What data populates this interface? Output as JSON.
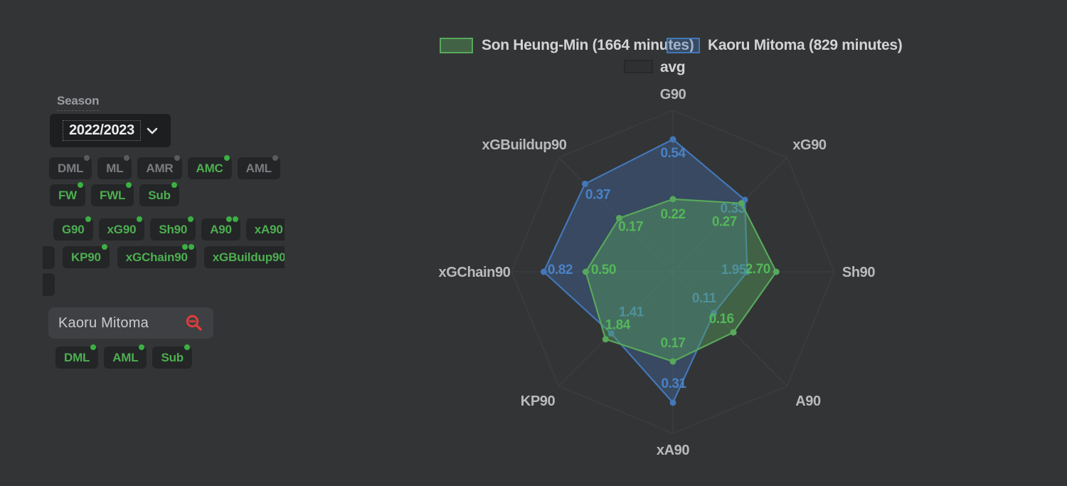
{
  "colors": {
    "background": "#333436",
    "accent_green": "#4caf50",
    "accent_blue": "#4377b8",
    "accent_red": "#e03c3c",
    "grid": "#3d3f42"
  },
  "panel": {
    "season": {
      "label": "Season",
      "value": "2022/2023"
    },
    "position_rows": [
      [
        {
          "label": "DML",
          "active": false,
          "dots": 1
        },
        {
          "label": "ML",
          "active": false,
          "dots": 1
        },
        {
          "label": "AMR",
          "active": false,
          "dots": 1
        },
        {
          "label": "AMC",
          "active": true,
          "dots": 1
        },
        {
          "label": "AML",
          "active": false,
          "dots": 1
        }
      ],
      [
        {
          "label": "FW",
          "active": true,
          "dots": 1
        },
        {
          "label": "FWL",
          "active": true,
          "dots": 1
        },
        {
          "label": "Sub",
          "active": true,
          "dots": 1
        }
      ]
    ],
    "stat_rows": [
      [
        {
          "label": "G90",
          "active": true,
          "dots": 1
        },
        {
          "label": "xG90",
          "active": true,
          "dots": 1
        },
        {
          "label": "Sh90",
          "active": true,
          "dots": 1
        },
        {
          "label": "A90",
          "active": true,
          "dots": 2
        },
        {
          "label": "xA90",
          "active": true,
          "dots": 0
        }
      ],
      [
        {
          "label": "KP90",
          "active": true,
          "dots": 1
        },
        {
          "label": "xGChain90",
          "active": true,
          "dots": 2
        },
        {
          "label": "xGBuildup90",
          "active": true,
          "dots": 0
        }
      ]
    ],
    "search": {
      "value": "Kaoru Mitoma"
    },
    "player_position_tags": [
      {
        "label": "DML",
        "active": true,
        "dots": 1
      },
      {
        "label": "AML",
        "active": true,
        "dots": 1
      },
      {
        "label": "Sub",
        "active": true,
        "dots": 1
      }
    ]
  },
  "legend": {
    "items": [
      {
        "label": "Son Heung-Min (1664 minutes)",
        "stroke": "#57a85c",
        "fill": "rgba(87,168,92,0.40)"
      },
      {
        "label": "Kaoru Mitoma (829 minutes)",
        "stroke": "#4377b8",
        "fill": "rgba(67,119,184,0.35)"
      },
      {
        "label": "avg",
        "stroke": "#27282a",
        "fill": "#2f3032"
      }
    ]
  },
  "chart_data": {
    "type": "radar",
    "axes": [
      "G90",
      "xG90",
      "Sh90",
      "A90",
      "xA90",
      "KP90",
      "xGChain90",
      "xGBuildup90"
    ],
    "series": [
      {
        "name": "Son Heung-Min",
        "minutes": 1664,
        "values": [
          0.22,
          0.27,
          2.7,
          0.16,
          0.17,
          1.84,
          0.5,
          0.17
        ],
        "labels": [
          "0.22",
          "0.27",
          "2.70",
          "0.16",
          "0.17",
          "1.84",
          "0.50",
          "0.17"
        ],
        "stroke": "#57a85c",
        "fill": "rgba(87,168,92,0.40)",
        "label_color": "#54b75a"
      },
      {
        "name": "Kaoru Mitoma",
        "minutes": 829,
        "values": [
          0.54,
          0.33,
          1.95,
          0.11,
          0.31,
          1.41,
          0.82,
          0.37
        ],
        "labels": [
          "0.54",
          "0.33",
          "1.95",
          "0.11",
          "0.31",
          "1.41",
          "0.82",
          "0.37"
        ],
        "stroke": "#4377b8",
        "fill": "rgba(67,119,184,0.33)",
        "label_color": "#4a82c6"
      },
      {
        "name": "avg",
        "values": null,
        "labels": null
      }
    ],
    "legend_position": "top-center",
    "grid": true,
    "layout_hints": {
      "center": [
        946,
        382
      ],
      "radius": 227,
      "draw_order": [
        1,
        0
      ],
      "r_frac": [
        [
          0.45,
          0.6,
          0.64,
          0.53,
          0.555,
          0.59,
          0.54,
          0.47
        ],
        [
          0.82,
          0.63,
          0.46,
          0.36,
          0.81,
          0.54,
          0.8,
          0.77
        ]
      ],
      "label_offset": [
        [
          [
            0,
            21
          ],
          [
            -24,
            26
          ],
          [
            -26,
            -4
          ],
          [
            -17,
            -19
          ],
          [
            0,
            -26
          ],
          [
            17,
            -20
          ],
          [
            25,
            -3
          ],
          [
            16,
            12
          ]
        ],
        [
          [
            0,
            19
          ],
          [
            -17,
            12
          ],
          [
            -19,
            -3
          ],
          [
            -14,
            -21
          ],
          [
            1,
            -27
          ],
          [
            28,
            -30
          ],
          [
            23,
            -3
          ],
          [
            18,
            15
          ]
        ]
      ],
      "axis_label_pos": [
        [
          946,
          139
        ],
        [
          1138,
          210
        ],
        [
          1207,
          389
        ],
        [
          1136,
          570
        ],
        [
          946,
          639
        ],
        [
          756,
          570
        ],
        [
          667,
          389
        ],
        [
          737,
          210
        ]
      ]
    }
  }
}
